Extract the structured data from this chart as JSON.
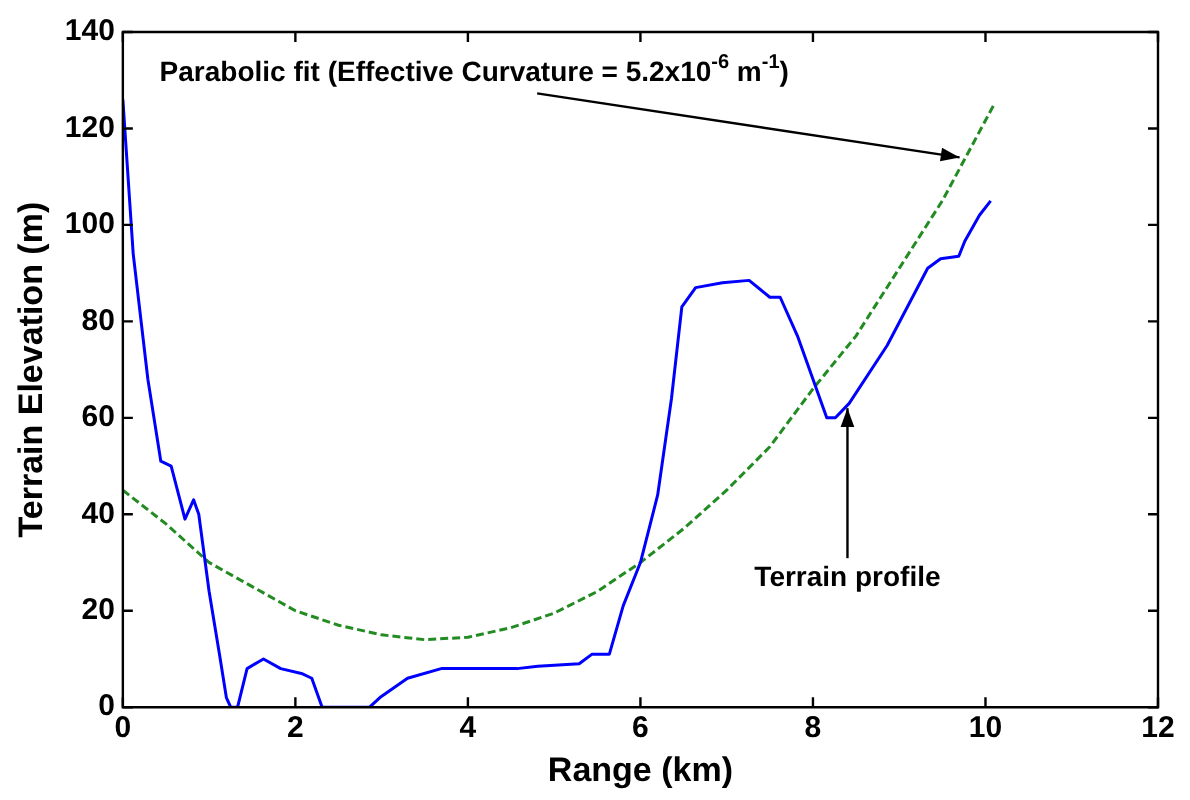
{
  "chart_data": {
    "type": "line",
    "xlabel": "Range (km)",
    "ylabel": "Terrain Elevation (m)",
    "xlim": [
      0,
      12
    ],
    "xticks": [
      0,
      2,
      4,
      6,
      8,
      10,
      12
    ],
    "ylim": [
      0,
      140
    ],
    "yticks": [
      0,
      20,
      40,
      60,
      80,
      100,
      120,
      140
    ],
    "legend": false,
    "marker": "none",
    "series": [
      {
        "color": "#0000ff",
        "line_style": "solid",
        "x": [
          0,
          0.12,
          0.29,
          0.44,
          0.56,
          0.72,
          0.82,
          0.88,
          1.0,
          1.12,
          1.2,
          1.25,
          1.33,
          1.44,
          1.63,
          1.83,
          2.07,
          2.19,
          2.31,
          2.86,
          2.98,
          3.3,
          3.69,
          4.1,
          4.57,
          4.81,
          5.29,
          5.44,
          5.64,
          5.8,
          6.0,
          6.2,
          6.36,
          6.48,
          6.64,
          6.95,
          7.26,
          7.5,
          7.62,
          7.82,
          8.02,
          8.16,
          8.26,
          8.42,
          8.86,
          9.33,
          9.48,
          9.69,
          9.76,
          9.93,
          10.06
        ],
        "values": [
          126,
          94,
          68,
          51,
          50,
          39,
          43,
          40,
          24,
          11,
          2,
          0,
          0,
          8,
          10,
          8,
          7,
          6,
          0,
          0,
          2,
          6,
          8,
          8,
          8,
          8.5,
          9,
          11,
          11,
          21,
          30,
          44,
          64,
          83,
          87,
          88,
          88.5,
          85,
          85,
          77,
          67,
          60,
          60,
          63,
          75,
          91,
          93,
          93.5,
          96.6,
          102,
          105
        ]
      },
      {
        "color": "#228b22",
        "line_style": "dashed",
        "x": [
          0,
          0.5,
          1,
          1.5,
          2,
          2.5,
          3,
          3.5,
          4,
          4.5,
          5,
          5.5,
          6,
          6.5,
          7,
          7.5,
          8,
          8.5,
          9,
          9.5,
          10.1
        ],
        "values": [
          45,
          38,
          30,
          25,
          20,
          17,
          15,
          14,
          14.5,
          16.5,
          19.5,
          24,
          30,
          37,
          45,
          54,
          66,
          77,
          91,
          105,
          125
        ]
      }
    ],
    "annotations": [
      {
        "text": "Parabolic fit (Effective Curvature = 5.2x10$^{-6}$ m$^{-1}$)",
        "x": 9.7,
        "y": 114
      },
      {
        "text": "Terrain profile",
        "x": 8.4,
        "y": 62
      }
    ]
  }
}
